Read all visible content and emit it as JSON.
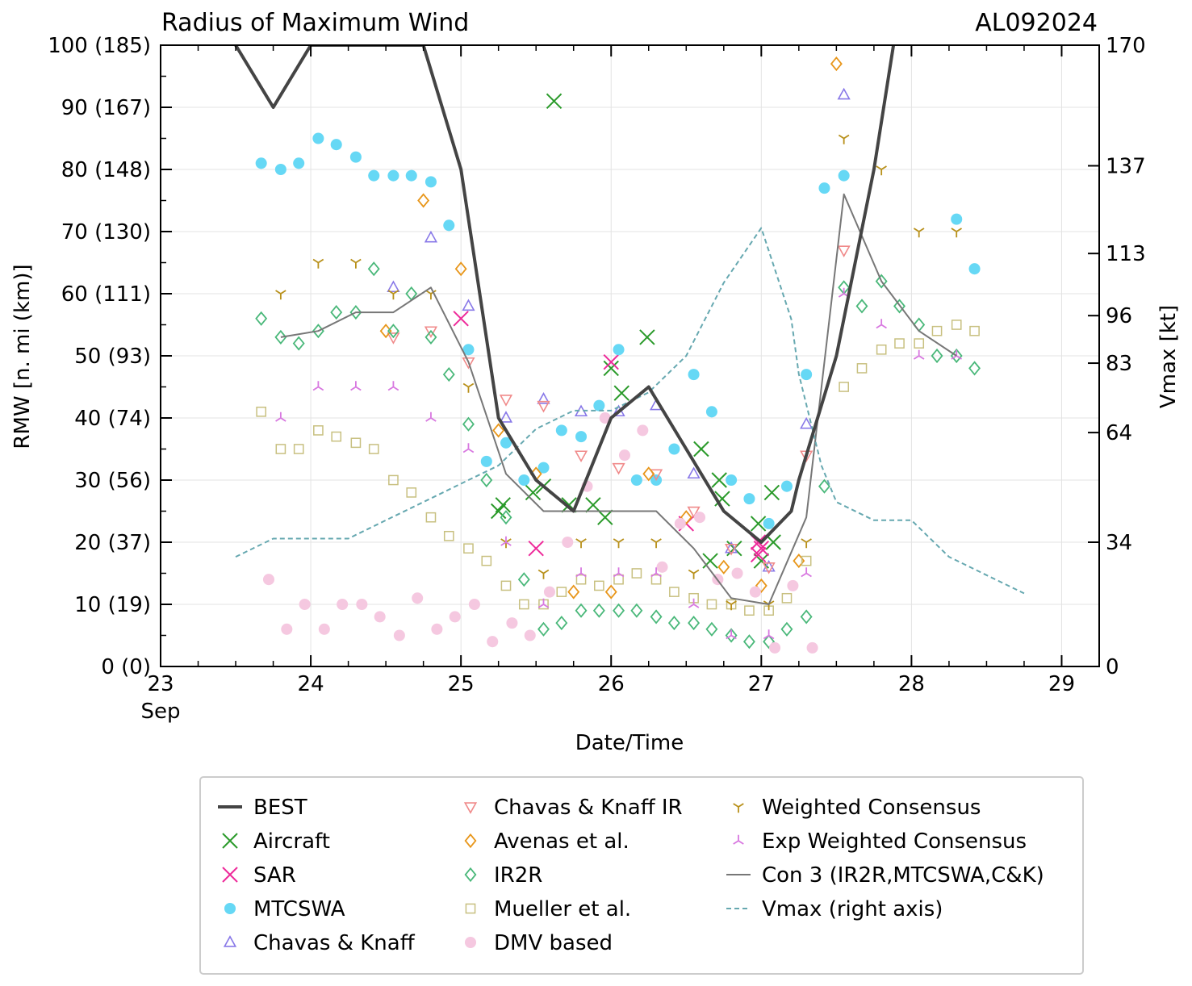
{
  "chart_data": {
    "type": "scatter",
    "title": "Radius of Maximum Wind",
    "storm_id": "AL092024",
    "xlabel": "Date/Time",
    "ylabel": "RMW [n. mi (km)]",
    "ylabel_right": "Vmax [kt]",
    "xlim": [
      23.0,
      29.25
    ],
    "ylim": [
      0,
      100
    ],
    "ylim_right": [
      0,
      170
    ],
    "x_ticks": [
      {
        "value": 23,
        "label": "23"
      },
      {
        "value": 24,
        "label": "24"
      },
      {
        "value": 25,
        "label": "25"
      },
      {
        "value": 26,
        "label": "26"
      },
      {
        "value": 27,
        "label": "27"
      },
      {
        "value": 28,
        "label": "28"
      },
      {
        "value": 29,
        "label": "29"
      }
    ],
    "x_month_label": "Sep",
    "y_ticks": [
      {
        "value": 0,
        "label": "0 (0)"
      },
      {
        "value": 10,
        "label": "10 (19)"
      },
      {
        "value": 20,
        "label": "20 (37)"
      },
      {
        "value": 30,
        "label": "30 (56)"
      },
      {
        "value": 40,
        "label": "40 (74)"
      },
      {
        "value": 50,
        "label": "50 (93)"
      },
      {
        "value": 60,
        "label": "60 (111)"
      },
      {
        "value": 70,
        "label": "70 (130)"
      },
      {
        "value": 80,
        "label": "80 (148)"
      },
      {
        "value": 90,
        "label": "90 (167)"
      },
      {
        "value": 100,
        "label": "100 (185)"
      }
    ],
    "y_right_ticks": [
      {
        "value": 0,
        "label": "0"
      },
      {
        "value": 34,
        "label": "34"
      },
      {
        "value": 64,
        "label": "64"
      },
      {
        "value": 83,
        "label": "83"
      },
      {
        "value": 96,
        "label": "96"
      },
      {
        "value": 113,
        "label": "113"
      },
      {
        "value": 137,
        "label": "137"
      },
      {
        "value": 170,
        "label": "170"
      }
    ],
    "series": [
      {
        "name": "BEST",
        "style": "line-thick",
        "color": "#444444",
        "x": [
          23.5,
          23.75,
          24.0,
          24.25,
          24.5,
          24.75,
          25.0,
          25.25,
          25.5,
          25.75,
          26.0,
          26.25,
          26.5,
          26.75,
          27.0,
          27.2,
          27.25,
          27.5,
          27.75,
          27.88
        ],
        "y": [
          100,
          90,
          100,
          100,
          100,
          100,
          80,
          40,
          30,
          25,
          40,
          45,
          35,
          25,
          20,
          25,
          30,
          50,
          80,
          100
        ]
      },
      {
        "name": "Aircraft",
        "marker": "x",
        "color": "#2a9a2a",
        "x": [
          25.25,
          25.28,
          25.48,
          25.55,
          25.62,
          25.72,
          25.88,
          25.96,
          26.0,
          26.07,
          26.24,
          26.6,
          26.66,
          26.72,
          26.74,
          26.82,
          26.98,
          27.07,
          27.08,
          27.0
        ],
        "y": [
          25,
          26,
          28,
          29,
          91,
          26,
          26,
          24,
          48,
          44,
          53,
          35,
          17,
          30,
          27,
          19,
          23,
          28,
          20,
          17
        ]
      },
      {
        "name": "SAR",
        "marker": "x",
        "color": "#ee2a9a",
        "x": [
          25.0,
          25.5,
          26.0,
          26.5,
          26.98,
          27.0,
          26.98
        ],
        "y": [
          56,
          19,
          49,
          23,
          20,
          19,
          18
        ]
      },
      {
        "name": "MTCSWA",
        "marker": "circle",
        "color": "#66d8f5",
        "x": [
          23.67,
          23.8,
          23.92,
          24.05,
          24.17,
          24.3,
          24.42,
          24.55,
          24.67,
          24.8,
          24.92,
          25.05,
          25.17,
          25.3,
          25.42,
          25.55,
          25.67,
          25.8,
          25.92,
          26.05,
          26.17,
          26.3,
          26.42,
          26.55,
          26.67,
          26.8,
          26.92,
          27.05,
          27.17,
          27.3,
          27.42,
          27.55,
          28.3,
          28.42
        ],
        "y": [
          81,
          80,
          81,
          85,
          84,
          82,
          79,
          79,
          79,
          78,
          71,
          51,
          33,
          36,
          30,
          32,
          38,
          37,
          42,
          51,
          30,
          30,
          35,
          47,
          41,
          30,
          27,
          23,
          29,
          47,
          77,
          79,
          72,
          64
        ]
      },
      {
        "name": "Chavas & Knaff",
        "marker": "triangle-up",
        "color": "#8878e8",
        "x": [
          24.55,
          24.8,
          25.05,
          25.3,
          25.55,
          25.8,
          26.05,
          26.3,
          26.55,
          26.8,
          27.05,
          27.3,
          27.55
        ],
        "y": [
          61,
          69,
          58,
          40,
          43,
          41,
          41,
          42,
          31,
          19,
          16,
          39,
          92
        ]
      },
      {
        "name": "Chavas & Knaff IR",
        "marker": "triangle-down",
        "color": "#f08a8a",
        "x": [
          24.55,
          24.8,
          25.05,
          25.3,
          25.55,
          25.8,
          26.05,
          26.3,
          26.55,
          26.8,
          27.05,
          27.3,
          27.55
        ],
        "y": [
          53,
          54,
          49,
          43,
          42,
          34,
          32,
          31,
          25,
          19,
          16,
          34,
          67
        ]
      },
      {
        "name": "Avenas et al.",
        "marker": "diamond",
        "color": "#e8961a",
        "x": [
          24.5,
          24.75,
          25.0,
          25.25,
          25.5,
          25.75,
          26.0,
          26.25,
          26.5,
          26.75,
          27.0,
          27.25,
          27.5
        ],
        "y": [
          54,
          75,
          64,
          38,
          31,
          12,
          12,
          31,
          24,
          16,
          13,
          17,
          97
        ]
      },
      {
        "name": "IR2R",
        "marker": "diamond",
        "color": "#4ab87a",
        "x": [
          23.67,
          23.8,
          23.92,
          24.05,
          24.17,
          24.3,
          24.42,
          24.55,
          24.67,
          24.8,
          24.92,
          25.05,
          25.17,
          25.3,
          25.42,
          25.55,
          25.67,
          25.8,
          25.92,
          26.05,
          26.17,
          26.3,
          26.42,
          26.55,
          26.67,
          26.8,
          26.92,
          27.05,
          27.17,
          27.3,
          27.42,
          27.55,
          27.67,
          27.8,
          27.92,
          28.05,
          28.17,
          28.3,
          28.42
        ],
        "y": [
          56,
          53,
          52,
          54,
          57,
          57,
          64,
          54,
          60,
          53,
          47,
          39,
          30,
          24,
          14,
          6,
          7,
          9,
          9,
          9,
          9,
          8,
          7,
          7,
          6,
          5,
          4,
          4,
          6,
          8,
          29,
          61,
          58,
          62,
          58,
          55,
          50,
          50,
          48
        ]
      },
      {
        "name": "Mueller et al.",
        "marker": "square",
        "color": "#c8c080",
        "x": [
          23.67,
          23.8,
          23.92,
          24.05,
          24.17,
          24.3,
          24.42,
          24.55,
          24.67,
          24.8,
          24.92,
          25.05,
          25.17,
          25.3,
          25.42,
          25.55,
          25.67,
          25.8,
          25.92,
          26.05,
          26.17,
          26.3,
          26.42,
          26.55,
          26.67,
          26.8,
          26.92,
          27.05,
          27.17,
          27.3,
          27.55,
          27.67,
          27.8,
          27.92,
          28.05,
          28.17,
          28.3,
          28.42
        ],
        "y": [
          41,
          35,
          35,
          38,
          37,
          36,
          35,
          30,
          28,
          24,
          21,
          19,
          17,
          13,
          10,
          10,
          12,
          14,
          13,
          14,
          15,
          14,
          12,
          11,
          10,
          10,
          9,
          9,
          11,
          17,
          45,
          48,
          51,
          52,
          52,
          54,
          55,
          54
        ]
      },
      {
        "name": "DMV based",
        "marker": "circle",
        "color": "#f5c8e0",
        "x": [
          23.72,
          23.84,
          23.96,
          24.09,
          24.21,
          24.34,
          24.46,
          24.59,
          24.71,
          24.84,
          24.96,
          25.09,
          25.21,
          25.34,
          25.46,
          25.59,
          25.71,
          25.84,
          25.96,
          26.09,
          26.21,
          26.34,
          26.46,
          26.59,
          26.71,
          26.84,
          26.96,
          27.09,
          27.21,
          27.34
        ],
        "y": [
          14,
          6,
          10,
          6,
          10,
          10,
          8,
          5,
          11,
          6,
          8,
          10,
          4,
          7,
          5,
          12,
          20,
          29,
          40,
          34,
          38,
          16,
          23,
          24,
          14,
          15,
          12,
          3,
          13,
          3
        ]
      },
      {
        "name": "Weighted Consensus",
        "marker": "tri-down",
        "color": "#b8901a",
        "x": [
          23.8,
          24.05,
          24.3,
          24.55,
          24.8,
          25.05,
          25.3,
          25.55,
          25.8,
          26.05,
          26.3,
          26.55,
          26.8,
          27.05,
          27.3,
          27.55,
          27.8,
          28.05,
          28.3
        ],
        "y": [
          60,
          65,
          65,
          60,
          60,
          45,
          20,
          15,
          20,
          20,
          20,
          15,
          10,
          10,
          20,
          85,
          80,
          70,
          70
        ]
      },
      {
        "name": "Exp Weighted Consensus",
        "marker": "tri-up",
        "color": "#d878e0",
        "x": [
          23.8,
          24.05,
          24.3,
          24.55,
          24.8,
          25.05,
          25.3,
          25.55,
          25.8,
          26.05,
          26.3,
          26.55,
          26.8,
          27.05,
          27.3,
          27.55,
          27.8,
          28.05,
          28.3
        ],
        "y": [
          40,
          45,
          45,
          45,
          40,
          35,
          20,
          10,
          15,
          15,
          15,
          10,
          5,
          5,
          15,
          60,
          55,
          50,
          50
        ]
      },
      {
        "name": "Con 3 (IR2R,MTCSWA,C&K)",
        "style": "line-thin",
        "color": "#777777",
        "x": [
          23.8,
          24.05,
          24.3,
          24.55,
          24.8,
          25.05,
          25.3,
          25.55,
          25.8,
          26.05,
          26.3,
          26.55,
          26.8,
          27.05,
          27.3,
          27.55,
          27.8,
          28.05,
          28.3
        ],
        "y": [
          53,
          54,
          57,
          57,
          61,
          49,
          31,
          25,
          25,
          25,
          25,
          19,
          11,
          10,
          24,
          76,
          62,
          54,
          50
        ]
      },
      {
        "name": "Vmax (right axis)",
        "style": "line-dashed",
        "axis": "right",
        "color": "#66a8b0",
        "x": [
          23.5,
          23.75,
          24.0,
          24.25,
          24.5,
          24.75,
          25.0,
          25.25,
          25.5,
          25.75,
          26.0,
          26.25,
          26.5,
          26.75,
          27.0,
          27.2,
          27.25,
          27.4,
          27.5,
          27.75,
          28.0,
          28.25,
          28.5,
          28.75
        ],
        "y": [
          30,
          35,
          35,
          35,
          40,
          45,
          50,
          55,
          65,
          70,
          70,
          75,
          85,
          105,
          120,
          95,
          80,
          55,
          45,
          40,
          40,
          30,
          25,
          20
        ]
      }
    ]
  }
}
